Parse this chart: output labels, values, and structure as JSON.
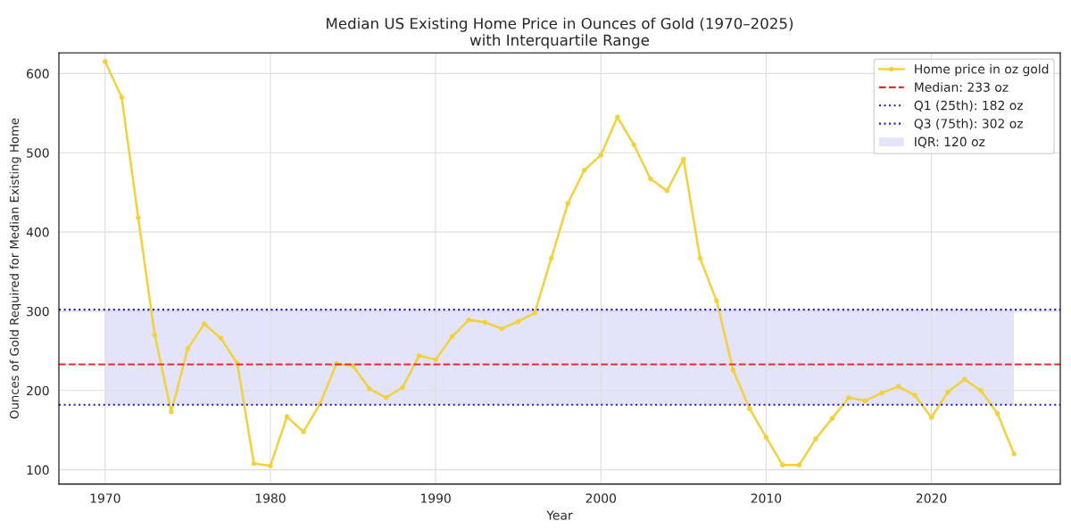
{
  "chart_data": {
    "type": "line",
    "title": "Median US Existing Home Price in Ounces of Gold (1970–2025)\nwith Interquartile Range",
    "xlabel": "Year",
    "ylabel": "Ounces of Gold Required for Median Existing Home",
    "x": [
      1970,
      1971,
      1972,
      1973,
      1974,
      1975,
      1976,
      1977,
      1978,
      1979,
      1980,
      1981,
      1982,
      1983,
      1984,
      1985,
      1986,
      1987,
      1988,
      1989,
      1990,
      1991,
      1992,
      1993,
      1994,
      1995,
      1996,
      1997,
      1998,
      1999,
      2000,
      2001,
      2002,
      2003,
      2004,
      2005,
      2006,
      2007,
      2008,
      2009,
      2010,
      2011,
      2012,
      2013,
      2014,
      2015,
      2016,
      2017,
      2018,
      2019,
      2020,
      2021,
      2022,
      2023,
      2024,
      2025
    ],
    "series": [
      {
        "name": "Home price in oz gold",
        "color": "#f2d13c",
        "values": [
          615,
          570,
          418,
          270,
          173,
          253,
          284,
          266,
          234,
          108,
          105,
          167,
          148,
          183,
          234,
          231,
          202,
          191,
          204,
          244,
          239,
          268,
          289,
          286,
          278,
          287,
          298,
          367,
          436,
          478,
          497,
          545,
          510,
          467,
          452,
          492,
          367,
          313,
          226,
          177,
          141,
          106,
          106,
          139,
          165,
          191,
          187,
          197,
          205,
          194,
          166,
          198,
          214,
          200,
          171,
          120
        ]
      }
    ],
    "ref_lines": [
      {
        "axis": "y",
        "value": 233,
        "label": "Median: 233 oz",
        "color": "#e82c2c",
        "line_style": "dashed"
      },
      {
        "axis": "y",
        "value": 182,
        "label": "Q1 (25th): 182 oz",
        "color": "#2020c8",
        "line_style": "dotted"
      },
      {
        "axis": "y",
        "value": 302,
        "label": "Q3 (75th): 302 oz",
        "color": "#2020c8",
        "line_style": "dotted"
      }
    ],
    "bands": [
      {
        "axis": "y",
        "from": 182,
        "to": 302,
        "label": "IQR: 120 oz",
        "color": "#e0e0f8"
      }
    ],
    "xlim": [
      1967.2,
      2027.8
    ],
    "ylim": [
      82,
      626
    ],
    "xticks": [
      1970,
      1980,
      1990,
      2000,
      2010,
      2020
    ],
    "yticks": [
      100,
      200,
      300,
      400,
      500,
      600
    ],
    "grid": true,
    "legend": "top right",
    "marker": "circle",
    "line_style": "solid"
  }
}
